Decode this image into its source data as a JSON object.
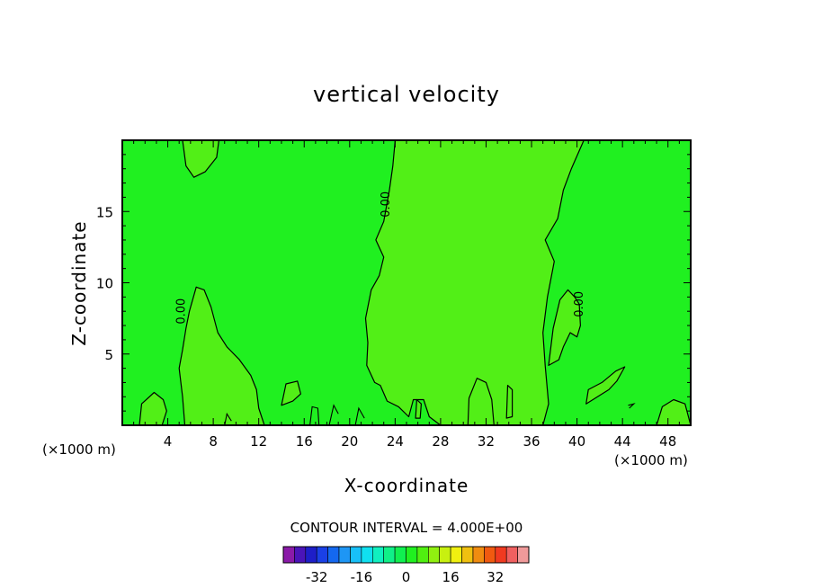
{
  "chart_data": {
    "type": "contour",
    "title": "vertical velocity",
    "xlabel": "X-coordinate",
    "ylabel": "Z-coordinate",
    "x_unit_left": "(×1000 m)",
    "x_unit_right": "(×1000 m)",
    "xlim": [
      0,
      50
    ],
    "ylim": [
      0,
      20
    ],
    "x_ticks": [
      4,
      8,
      12,
      16,
      20,
      24,
      28,
      32,
      36,
      40,
      44,
      48
    ],
    "y_ticks": [
      5,
      10,
      15
    ],
    "contour_interval_text": "CONTOUR INTERVAL =  4.000E+00",
    "contour_labels": [
      {
        "text": "0.00",
        "x": 23.5,
        "z": 15.5
      },
      {
        "text": "0.00",
        "x": 5.5,
        "z": 8.0
      },
      {
        "text": "0.00",
        "x": 40.5,
        "z": 8.5
      }
    ],
    "colorbar": {
      "ticks": [
        "-32",
        "-16",
        "0",
        "16",
        "32"
      ],
      "tick_values": [
        -32,
        -16,
        0,
        16,
        32
      ],
      "levels": [
        -40,
        -36,
        -32,
        -28,
        -24,
        -20,
        -16,
        -12,
        -8,
        -4,
        0,
        4,
        8,
        12,
        16,
        20,
        24,
        28,
        32,
        36,
        40
      ],
      "colors": [
        "#8a1aa8",
        "#4a14b8",
        "#1e1ec8",
        "#1a40e6",
        "#1468f0",
        "#1e96f5",
        "#18c0f8",
        "#10e0f0",
        "#10f0c0",
        "#10f088",
        "#10f050",
        "#20f020",
        "#50f010",
        "#90f010",
        "#c8f010",
        "#f0f010",
        "#f0c010",
        "#f08c10",
        "#f05a10",
        "#f03a20",
        "#f06060",
        "#f09a9a"
      ],
      "background_color": "#20f020",
      "highlight_color": "#52ef17"
    }
  }
}
